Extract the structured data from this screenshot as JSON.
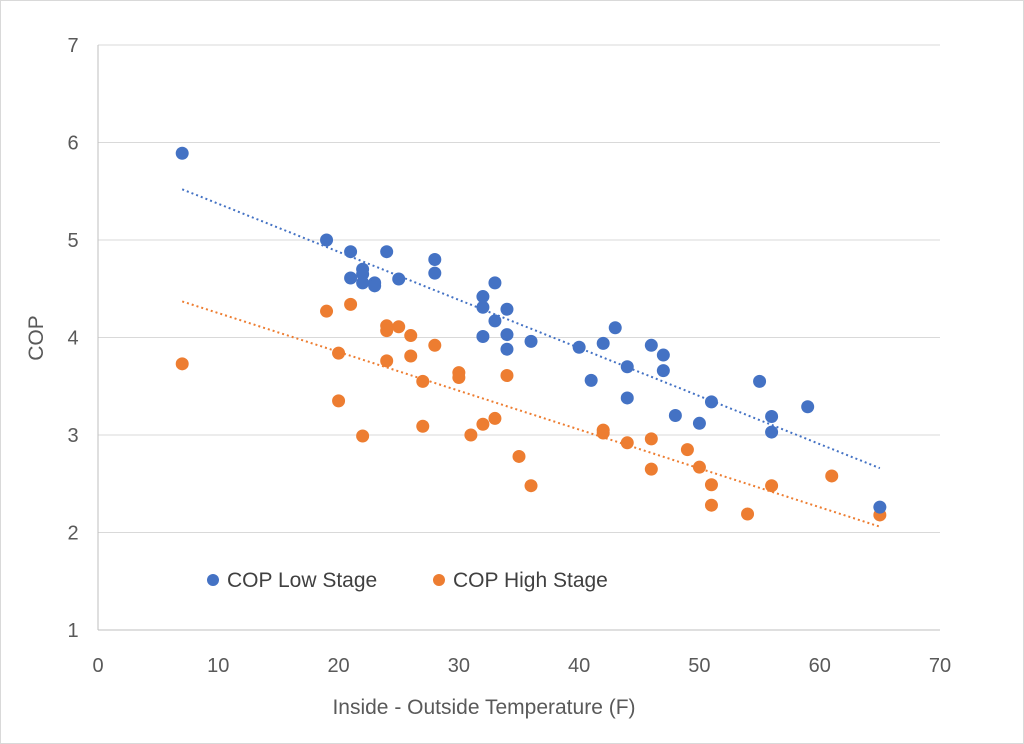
{
  "chart_data": {
    "type": "scatter",
    "title": "",
    "xlabel": "Inside - Outside Temperature (F)",
    "ylabel": "COP",
    "xlim": [
      0,
      70
    ],
    "ylim": [
      1,
      7
    ],
    "x_ticks": [
      0,
      10,
      20,
      30,
      40,
      50,
      60,
      70
    ],
    "y_ticks": [
      1,
      2,
      3,
      4,
      5,
      6,
      7
    ],
    "grid": "horizontal",
    "legend_position": "bottom-left inside",
    "series": [
      {
        "name": "COP Low Stage",
        "color": "#4472C4",
        "points": [
          [
            7,
            5.89
          ],
          [
            19,
            5.0
          ],
          [
            21,
            4.88
          ],
          [
            21,
            4.61
          ],
          [
            22,
            4.7
          ],
          [
            22,
            4.65
          ],
          [
            22,
            4.56
          ],
          [
            23,
            4.56
          ],
          [
            23,
            4.53
          ],
          [
            24,
            4.88
          ],
          [
            25,
            4.6
          ],
          [
            28,
            4.8
          ],
          [
            28,
            4.66
          ],
          [
            32,
            4.42
          ],
          [
            32,
            4.31
          ],
          [
            32,
            4.01
          ],
          [
            33,
            4.56
          ],
          [
            33,
            4.17
          ],
          [
            34,
            4.29
          ],
          [
            34,
            4.03
          ],
          [
            34,
            3.88
          ],
          [
            36,
            3.96
          ],
          [
            40,
            3.9
          ],
          [
            41,
            3.56
          ],
          [
            42,
            3.94
          ],
          [
            43,
            4.1
          ],
          [
            44,
            3.7
          ],
          [
            44,
            3.38
          ],
          [
            46,
            3.92
          ],
          [
            47,
            3.82
          ],
          [
            47,
            3.66
          ],
          [
            48,
            3.2
          ],
          [
            50,
            3.12
          ],
          [
            51,
            3.34
          ],
          [
            55,
            3.55
          ],
          [
            56,
            3.19
          ],
          [
            56,
            3.03
          ],
          [
            59,
            3.29
          ],
          [
            65,
            2.26
          ]
        ],
        "trendline": {
          "x": [
            7,
            65
          ],
          "y": [
            5.52,
            2.66
          ]
        }
      },
      {
        "name": "COP High Stage",
        "color": "#ED7D31",
        "points": [
          [
            7,
            3.73
          ],
          [
            19,
            4.27
          ],
          [
            20,
            3.84
          ],
          [
            20,
            3.35
          ],
          [
            21,
            4.34
          ],
          [
            22,
            2.99
          ],
          [
            24,
            4.12
          ],
          [
            24,
            4.07
          ],
          [
            24,
            3.76
          ],
          [
            25,
            4.11
          ],
          [
            26,
            4.02
          ],
          [
            26,
            3.81
          ],
          [
            27,
            3.55
          ],
          [
            27,
            3.09
          ],
          [
            28,
            3.92
          ],
          [
            30,
            3.64
          ],
          [
            30,
            3.59
          ],
          [
            31,
            3.0
          ],
          [
            32,
            3.11
          ],
          [
            33,
            3.17
          ],
          [
            34,
            3.61
          ],
          [
            35,
            2.78
          ],
          [
            36,
            2.48
          ],
          [
            42,
            3.05
          ],
          [
            42,
            3.02
          ],
          [
            44,
            2.92
          ],
          [
            46,
            2.96
          ],
          [
            46,
            2.65
          ],
          [
            49,
            2.85
          ],
          [
            50,
            2.67
          ],
          [
            51,
            2.49
          ],
          [
            51,
            2.28
          ],
          [
            54,
            2.19
          ],
          [
            56,
            2.48
          ],
          [
            61,
            2.58
          ],
          [
            65,
            2.18
          ]
        ],
        "trendline": {
          "x": [
            7,
            65
          ],
          "y": [
            4.37,
            2.06
          ]
        }
      }
    ]
  }
}
